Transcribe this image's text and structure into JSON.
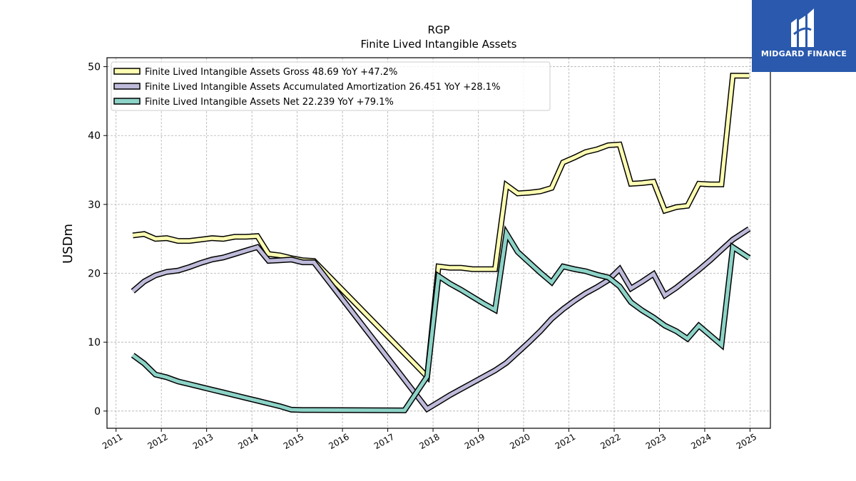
{
  "brand": {
    "name": "MIDGARD FINANCE",
    "color": "#2a59ad"
  },
  "chart_data": {
    "type": "line",
    "title": "RGP",
    "subtitle": "Finite Lived Intangible Assets",
    "ylabel": "USDm",
    "xlabel": "",
    "ylim": [
      -2.5,
      51.3
    ],
    "xlim": [
      2010.8,
      2025.45
    ],
    "yticks": [
      0,
      10,
      20,
      30,
      40,
      50
    ],
    "xticks": [
      2011,
      2012,
      2013,
      2014,
      2015,
      2016,
      2017,
      2018,
      2019,
      2020,
      2021,
      2022,
      2023,
      2024,
      2025
    ],
    "grid": true,
    "legend_position": "top-left",
    "series": [
      {
        "name": "Finite Lived Intangible Assets Gross",
        "legend": "Finite Lived Intangible Assets Gross  48.69 YoY +47.2%",
        "color": "#ffffb3",
        "points": [
          [
            2011.37,
            25.5
          ],
          [
            2011.62,
            25.7
          ],
          [
            2011.87,
            25.0
          ],
          [
            2012.12,
            25.1
          ],
          [
            2012.37,
            24.7
          ],
          [
            2012.62,
            24.7
          ],
          [
            2012.87,
            24.9
          ],
          [
            2013.12,
            25.1
          ],
          [
            2013.37,
            25.0
          ],
          [
            2013.62,
            25.3
          ],
          [
            2013.87,
            25.3
          ],
          [
            2014.12,
            25.4
          ],
          [
            2014.37,
            22.8
          ],
          [
            2014.62,
            22.6
          ],
          [
            2014.87,
            22.2
          ],
          [
            2015.12,
            21.9
          ],
          [
            2015.37,
            21.8
          ],
          [
            2017.87,
            5.0
          ],
          [
            2018.12,
            21.0
          ],
          [
            2018.37,
            20.8
          ],
          [
            2018.62,
            20.8
          ],
          [
            2018.87,
            20.6
          ],
          [
            2019.12,
            20.6
          ],
          [
            2019.37,
            20.6
          ],
          [
            2019.62,
            32.8
          ],
          [
            2019.87,
            31.6
          ],
          [
            2020.12,
            31.7
          ],
          [
            2020.37,
            31.9
          ],
          [
            2020.62,
            32.4
          ],
          [
            2020.87,
            36.1
          ],
          [
            2021.12,
            36.8
          ],
          [
            2021.37,
            37.6
          ],
          [
            2021.62,
            38.0
          ],
          [
            2021.87,
            38.6
          ],
          [
            2022.12,
            38.7
          ],
          [
            2022.37,
            33.0
          ],
          [
            2022.62,
            33.1
          ],
          [
            2022.87,
            33.3
          ],
          [
            2023.12,
            29.1
          ],
          [
            2023.37,
            29.6
          ],
          [
            2023.62,
            29.8
          ],
          [
            2023.87,
            33.0
          ],
          [
            2024.12,
            32.9
          ],
          [
            2024.37,
            32.9
          ],
          [
            2024.62,
            48.7
          ],
          [
            2024.98,
            48.69
          ]
        ]
      },
      {
        "name": "Finite Lived Intangible Assets Accumulated Amortization",
        "legend": "Finite Lived Intangible Assets Accumulated Amortization  26.451 YoY +28.1%",
        "color": "#bebada",
        "points": [
          [
            2011.37,
            17.4
          ],
          [
            2011.62,
            18.8
          ],
          [
            2011.87,
            19.7
          ],
          [
            2012.12,
            20.2
          ],
          [
            2012.37,
            20.4
          ],
          [
            2012.62,
            20.9
          ],
          [
            2012.87,
            21.5
          ],
          [
            2013.12,
            22.0
          ],
          [
            2013.37,
            22.3
          ],
          [
            2013.62,
            22.8
          ],
          [
            2013.87,
            23.3
          ],
          [
            2014.12,
            23.8
          ],
          [
            2014.37,
            21.8
          ],
          [
            2014.62,
            21.9
          ],
          [
            2014.87,
            22.0
          ],
          [
            2015.12,
            21.6
          ],
          [
            2015.37,
            21.6
          ],
          [
            2017.87,
            0.3
          ],
          [
            2018.12,
            1.3
          ],
          [
            2018.37,
            2.3
          ],
          [
            2018.62,
            3.2
          ],
          [
            2018.87,
            4.1
          ],
          [
            2019.12,
            5.0
          ],
          [
            2019.37,
            5.9
          ],
          [
            2019.62,
            7.0
          ],
          [
            2019.87,
            8.5
          ],
          [
            2020.12,
            10.0
          ],
          [
            2020.37,
            11.6
          ],
          [
            2020.62,
            13.4
          ],
          [
            2020.87,
            14.8
          ],
          [
            2021.12,
            16.0
          ],
          [
            2021.37,
            17.1
          ],
          [
            2021.62,
            18.0
          ],
          [
            2021.87,
            19.0
          ],
          [
            2022.12,
            20.6
          ],
          [
            2022.37,
            17.8
          ],
          [
            2022.62,
            18.8
          ],
          [
            2022.87,
            19.9
          ],
          [
            2023.12,
            16.8
          ],
          [
            2023.37,
            17.9
          ],
          [
            2023.62,
            19.2
          ],
          [
            2023.87,
            20.5
          ],
          [
            2024.12,
            21.9
          ],
          [
            2024.37,
            23.4
          ],
          [
            2024.62,
            24.9
          ],
          [
            2024.98,
            26.451
          ]
        ]
      },
      {
        "name": "Finite Lived Intangible Assets Net",
        "legend": "Finite Lived Intangible Assets Net  22.239 YoY +79.1%",
        "color": "#8dd3c7",
        "points": [
          [
            2011.37,
            8.1
          ],
          [
            2011.62,
            6.9
          ],
          [
            2011.87,
            5.3
          ],
          [
            2012.12,
            4.9
          ],
          [
            2012.37,
            4.3
          ],
          [
            2012.62,
            3.9
          ],
          [
            2012.87,
            3.5
          ],
          [
            2013.12,
            3.1
          ],
          [
            2013.37,
            2.7
          ],
          [
            2013.62,
            2.3
          ],
          [
            2013.87,
            1.9
          ],
          [
            2014.12,
            1.5
          ],
          [
            2014.37,
            1.1
          ],
          [
            2014.62,
            0.7
          ],
          [
            2014.87,
            0.2
          ],
          [
            2015.12,
            0.15
          ],
          [
            2015.37,
            0.15
          ],
          [
            2017.37,
            0.1
          ],
          [
            2017.87,
            5.0
          ],
          [
            2018.12,
            19.6
          ],
          [
            2018.37,
            18.5
          ],
          [
            2018.62,
            17.6
          ],
          [
            2018.87,
            16.6
          ],
          [
            2019.12,
            15.6
          ],
          [
            2019.37,
            14.7
          ],
          [
            2019.62,
            25.8
          ],
          [
            2019.87,
            23.1
          ],
          [
            2020.12,
            21.6
          ],
          [
            2020.37,
            20.1
          ],
          [
            2020.62,
            18.7
          ],
          [
            2020.87,
            21.0
          ],
          [
            2021.12,
            20.6
          ],
          [
            2021.37,
            20.3
          ],
          [
            2021.62,
            19.8
          ],
          [
            2021.87,
            19.4
          ],
          [
            2022.12,
            18.1
          ],
          [
            2022.37,
            15.8
          ],
          [
            2022.62,
            14.6
          ],
          [
            2022.87,
            13.6
          ],
          [
            2023.12,
            12.4
          ],
          [
            2023.37,
            11.6
          ],
          [
            2023.62,
            10.5
          ],
          [
            2023.87,
            12.4
          ],
          [
            2024.12,
            11.0
          ],
          [
            2024.37,
            9.6
          ],
          [
            2024.62,
            23.8
          ],
          [
            2024.98,
            22.239
          ]
        ]
      }
    ]
  }
}
